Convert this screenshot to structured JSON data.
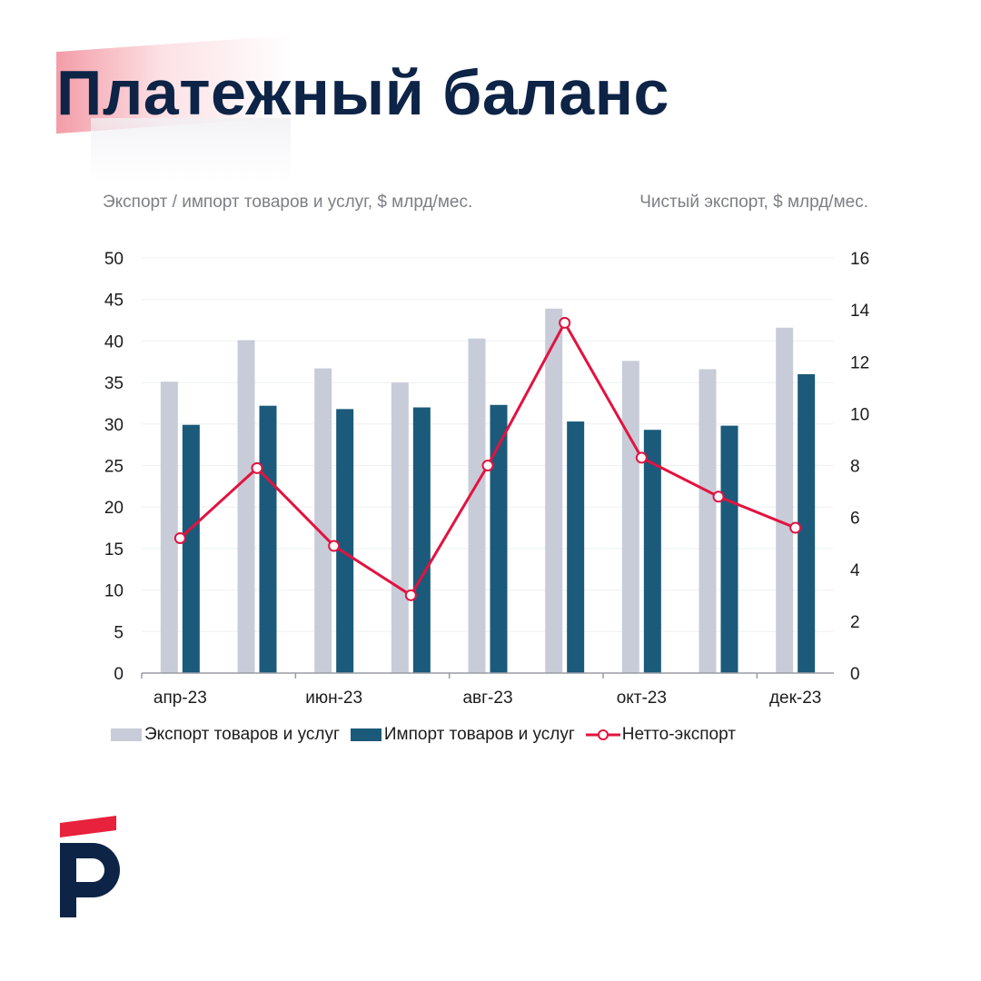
{
  "page": {
    "title": "Платежный баланс"
  },
  "colors": {
    "title": "#0d2447",
    "export": "#c7ccd8",
    "import": "#1b5a7a",
    "net": "#e3123f",
    "logo_red": "#e8213c",
    "logo_navy": "#0d2447"
  },
  "chart_data": {
    "type": "bar",
    "title": "",
    "left_axis_title": "Экспорт / импорт товаров и услуг, $ млрд/мес.",
    "right_axis_title": "Чистый экспорт, $ млрд/мес.",
    "categories": [
      "апр-23",
      "май-23",
      "июн-23",
      "июл-23",
      "авг-23",
      "сен-23",
      "окт-23",
      "ноя-23",
      "дек-23"
    ],
    "x_tick_labels": [
      "апр-23",
      "",
      "июн-23",
      "",
      "авг-23",
      "",
      "окт-23",
      "",
      "дек-23"
    ],
    "y_left": {
      "min": 0,
      "max": 50,
      "step": 5,
      "ticks": [
        "0",
        "5",
        "10",
        "15",
        "20",
        "25",
        "30",
        "35",
        "40",
        "45",
        "50"
      ]
    },
    "y_right": {
      "min": 0,
      "max": 16,
      "step": 2,
      "ticks": [
        "0",
        "2",
        "4",
        "6",
        "8",
        "10",
        "12",
        "14",
        "16"
      ]
    },
    "grid": true,
    "legend_position": "bottom",
    "series": [
      {
        "name": "Экспорт товаров и услуг",
        "type": "bar",
        "axis": "left",
        "color": "#c7ccd8",
        "values": [
          35.1,
          40.1,
          36.7,
          35.0,
          40.3,
          43.9,
          37.6,
          36.6,
          41.6
        ]
      },
      {
        "name": "Импорт товаров и услуг",
        "type": "bar",
        "axis": "left",
        "color": "#1b5a7a",
        "values": [
          29.9,
          32.2,
          31.8,
          32.0,
          32.3,
          30.3,
          29.3,
          29.8,
          36.0
        ]
      },
      {
        "name": "Нетто-экспорт",
        "type": "line",
        "axis": "right",
        "color": "#e3123f",
        "values": [
          5.2,
          7.9,
          4.9,
          3.0,
          8.0,
          13.5,
          8.3,
          6.8,
          5.6
        ]
      }
    ]
  }
}
